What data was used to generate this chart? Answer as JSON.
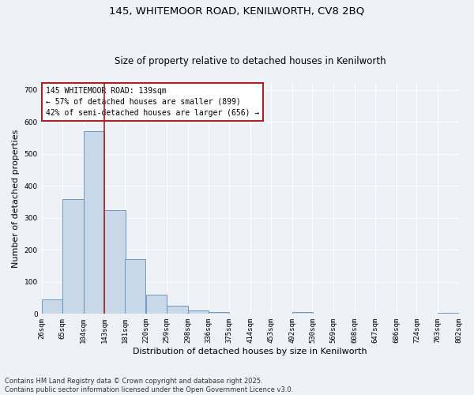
{
  "title1": "145, WHITEMOOR ROAD, KENILWORTH, CV8 2BQ",
  "title2": "Size of property relative to detached houses in Kenilworth",
  "xlabel": "Distribution of detached houses by size in Kenilworth",
  "ylabel": "Number of detached properties",
  "bar_color": "#c8d8e8",
  "bar_edge_color": "#5b8db8",
  "background_color": "#eef2f7",
  "grid_color": "#ffffff",
  "annotation_text": "145 WHITEMOOR ROAD: 139sqm\n← 57% of detached houses are smaller (899)\n42% of semi-detached houses are larger (656) →",
  "vline_x": 143,
  "vline_color": "#aa2222",
  "bin_edges": [
    26,
    65,
    104,
    143,
    181,
    220,
    259,
    298,
    336,
    375,
    414,
    453,
    492,
    530,
    569,
    608,
    647,
    686,
    724,
    763,
    802
  ],
  "bin_labels": [
    "26sqm",
    "65sqm",
    "104sqm",
    "143sqm",
    "181sqm",
    "220sqm",
    "259sqm",
    "298sqm",
    "336sqm",
    "375sqm",
    "414sqm",
    "453sqm",
    "492sqm",
    "530sqm",
    "569sqm",
    "608sqm",
    "647sqm",
    "686sqm",
    "724sqm",
    "763sqm",
    "802sqm"
  ],
  "bar_heights": [
    46,
    358,
    571,
    323,
    170,
    61,
    26,
    11,
    6,
    0,
    0,
    0,
    5,
    0,
    0,
    0,
    0,
    0,
    0,
    4
  ],
  "ylim": [
    0,
    720
  ],
  "yticks": [
    0,
    100,
    200,
    300,
    400,
    500,
    600,
    700
  ],
  "footnote": "Contains HM Land Registry data © Crown copyright and database right 2025.\nContains public sector information licensed under the Open Government Licence v3.0.",
  "title_fontsize": 9.5,
  "subtitle_fontsize": 8.5,
  "tick_fontsize": 6.5,
  "ylabel_fontsize": 8,
  "xlabel_fontsize": 8,
  "annot_fontsize": 7
}
